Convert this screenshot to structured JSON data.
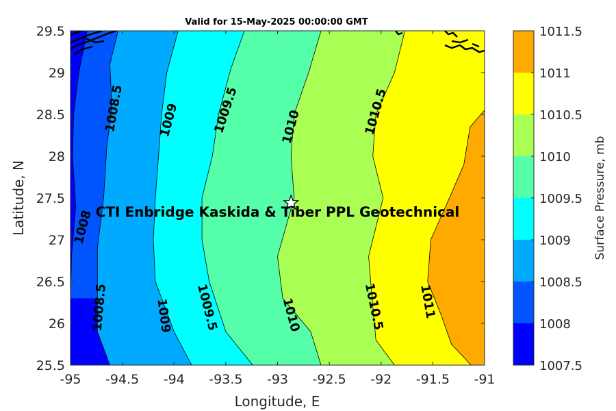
{
  "chart_data": {
    "type": "filled-contour",
    "title": "Valid for 15-May-2025 00:00:00 GMT",
    "xlabel": "Longitude, E",
    "ylabel": "Latitude, N",
    "xlim": [
      -95,
      -91
    ],
    "ylim": [
      25.5,
      29.5
    ],
    "x_ticks": [
      "-95",
      "-94.5",
      "-94",
      "-93.5",
      "-93",
      "-92.5",
      "-92",
      "-91.5",
      "-91"
    ],
    "y_ticks": [
      "25.5",
      "26",
      "26.5",
      "27",
      "27.5",
      "28",
      "28.5",
      "29",
      "29.5"
    ],
    "colorbar": {
      "label": "Surface Pressure, mb",
      "ticks": [
        "1007.5",
        "1008",
        "1008.5",
        "1009",
        "1009.5",
        "1010",
        "1010.5",
        "1011",
        "1011.5"
      ],
      "levels": [
        1007.5,
        1008,
        1008.5,
        1009,
        1009.5,
        1010,
        1010.5,
        1011,
        1011.5
      ],
      "colors": [
        "#0000ff",
        "#0055ff",
        "#00aaff",
        "#00ffff",
        "#55ffaa",
        "#aaff55",
        "#ffff00",
        "#ffaa00",
        "#ff5500"
      ]
    },
    "contours": [
      {
        "level": 1008,
        "label": "1008",
        "points": [
          [
            -94.84,
            29.5
          ],
          [
            -94.92,
            29.0
          ],
          [
            -94.97,
            28.5
          ],
          [
            -94.98,
            28.0
          ],
          [
            -94.95,
            27.4
          ],
          [
            -94.99,
            26.8
          ],
          [
            -95.0,
            26.3
          ]
        ]
      },
      {
        "level": 1008.5,
        "label": "1008.5",
        "points": [
          [
            -94.54,
            29.5
          ],
          [
            -94.62,
            29.1
          ],
          [
            -94.6,
            28.6
          ],
          [
            -94.65,
            28.1
          ],
          [
            -94.68,
            27.5
          ],
          [
            -94.74,
            26.9
          ],
          [
            -94.74,
            26.4
          ],
          [
            -94.74,
            25.9
          ],
          [
            -94.62,
            25.5
          ]
        ]
      },
      {
        "level": 1009,
        "label": "1009",
        "points": [
          [
            -93.96,
            29.5
          ],
          [
            -94.07,
            29.0
          ],
          [
            -94.12,
            28.5
          ],
          [
            -94.15,
            28.0
          ],
          [
            -94.18,
            27.5
          ],
          [
            -94.2,
            27.0
          ],
          [
            -94.18,
            26.5
          ],
          [
            -94.0,
            25.9
          ],
          [
            -93.83,
            25.5
          ]
        ]
      },
      {
        "level": 1009.5,
        "label": "1009.5",
        "points": [
          [
            -93.32,
            29.5
          ],
          [
            -93.45,
            29.05
          ],
          [
            -93.57,
            28.5
          ],
          [
            -93.63,
            28.0
          ],
          [
            -93.73,
            27.5
          ],
          [
            -93.73,
            27.0
          ],
          [
            -93.66,
            26.5
          ],
          [
            -93.5,
            25.9
          ],
          [
            -93.24,
            25.5
          ]
        ]
      },
      {
        "level": 1010,
        "label": "1010",
        "points": [
          [
            -92.58,
            29.5
          ],
          [
            -92.7,
            29.0
          ],
          [
            -92.84,
            28.5
          ],
          [
            -92.87,
            28.0
          ],
          [
            -92.84,
            27.5
          ],
          [
            -93.0,
            26.8
          ],
          [
            -92.95,
            26.3
          ],
          [
            -92.68,
            25.9
          ],
          [
            -92.58,
            25.5
          ]
        ]
      },
      {
        "level": 1010.5,
        "label": "1010.5",
        "points": [
          [
            -91.77,
            29.5
          ],
          [
            -91.87,
            29.0
          ],
          [
            -92.05,
            28.5
          ],
          [
            -92.08,
            28.0
          ],
          [
            -91.98,
            27.5
          ],
          [
            -92.12,
            26.8
          ],
          [
            -92.08,
            26.2
          ],
          [
            -92.05,
            25.8
          ],
          [
            -91.87,
            25.5
          ]
        ]
      },
      {
        "level": 1011,
        "label": "1011",
        "points": [
          [
            -91.0,
            28.55
          ],
          [
            -91.14,
            28.35
          ],
          [
            -91.2,
            27.9
          ],
          [
            -91.34,
            27.5
          ],
          [
            -91.52,
            27.0
          ],
          [
            -91.55,
            26.5
          ],
          [
            -91.42,
            26.1
          ],
          [
            -91.32,
            25.75
          ],
          [
            -91.13,
            25.5
          ]
        ]
      }
    ],
    "contour_labels": [
      {
        "text": "1008",
        "x": -94.88,
        "y": 27.15,
        "angle": -75
      },
      {
        "text": "1008.5",
        "x": -94.58,
        "y": 28.57,
        "angle": -80
      },
      {
        "text": "1009",
        "x": -94.05,
        "y": 28.43,
        "angle": -75
      },
      {
        "text": "1009.5",
        "x": -93.5,
        "y": 28.55,
        "angle": -72
      },
      {
        "text": "1010",
        "x": -92.87,
        "y": 28.35,
        "angle": -75
      },
      {
        "text": "1010.5",
        "x": -92.05,
        "y": 28.53,
        "angle": -74
      },
      {
        "text": "1008.5",
        "x": -94.72,
        "y": 26.19,
        "angle": -85
      },
      {
        "text": "1009",
        "x": -94.1,
        "y": 26.09,
        "angle": 82
      },
      {
        "text": "1009.5",
        "x": -93.68,
        "y": 26.19,
        "angle": 76
      },
      {
        "text": "1010",
        "x": -92.87,
        "y": 26.1,
        "angle": 75
      },
      {
        "text": "1010.5",
        "x": -92.07,
        "y": 26.2,
        "angle": 78
      },
      {
        "text": "1011",
        "x": -91.55,
        "y": 26.26,
        "angle": 80
      }
    ],
    "annotation": {
      "text": "CTI Enbridge  Kaskida & Tiber PPL Geotechnical",
      "x": -93.0,
      "y": 27.33,
      "marker": {
        "symbol": "star",
        "x": -92.87,
        "y": 27.44
      }
    }
  }
}
